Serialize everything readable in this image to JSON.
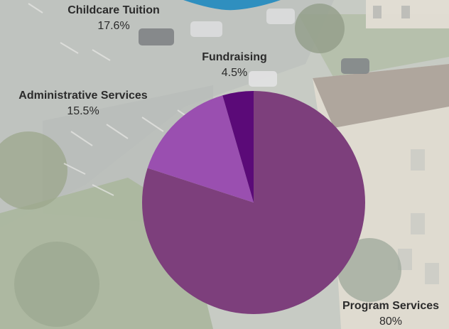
{
  "chart_data": {
    "type": "pie",
    "title": "",
    "slices": [
      {
        "label": "Program Services",
        "value": 80,
        "display": "80%",
        "color": "#7d3f7c"
      },
      {
        "label": "Administrative Services",
        "value": 15.5,
        "display": "15.5%",
        "color": "#9a4fb0"
      },
      {
        "label": "Fundraising",
        "value": 4.5,
        "display": "4.5%",
        "color": "#5b0a78"
      }
    ],
    "partial_slice": {
      "label": "Childcare Tuition",
      "value": 17.6,
      "display": "17.6%",
      "color": "#2f8fbf"
    },
    "legend": "none"
  },
  "labels": {
    "childcare": {
      "name": "Childcare Tuition",
      "pct": "17.6%"
    },
    "fundraising": {
      "name": "Fundraising",
      "pct": "4.5%"
    },
    "admin": {
      "name": "Administrative Services",
      "pct": "15.5%"
    },
    "program": {
      "name": "Program Services",
      "pct": "80%"
    }
  }
}
